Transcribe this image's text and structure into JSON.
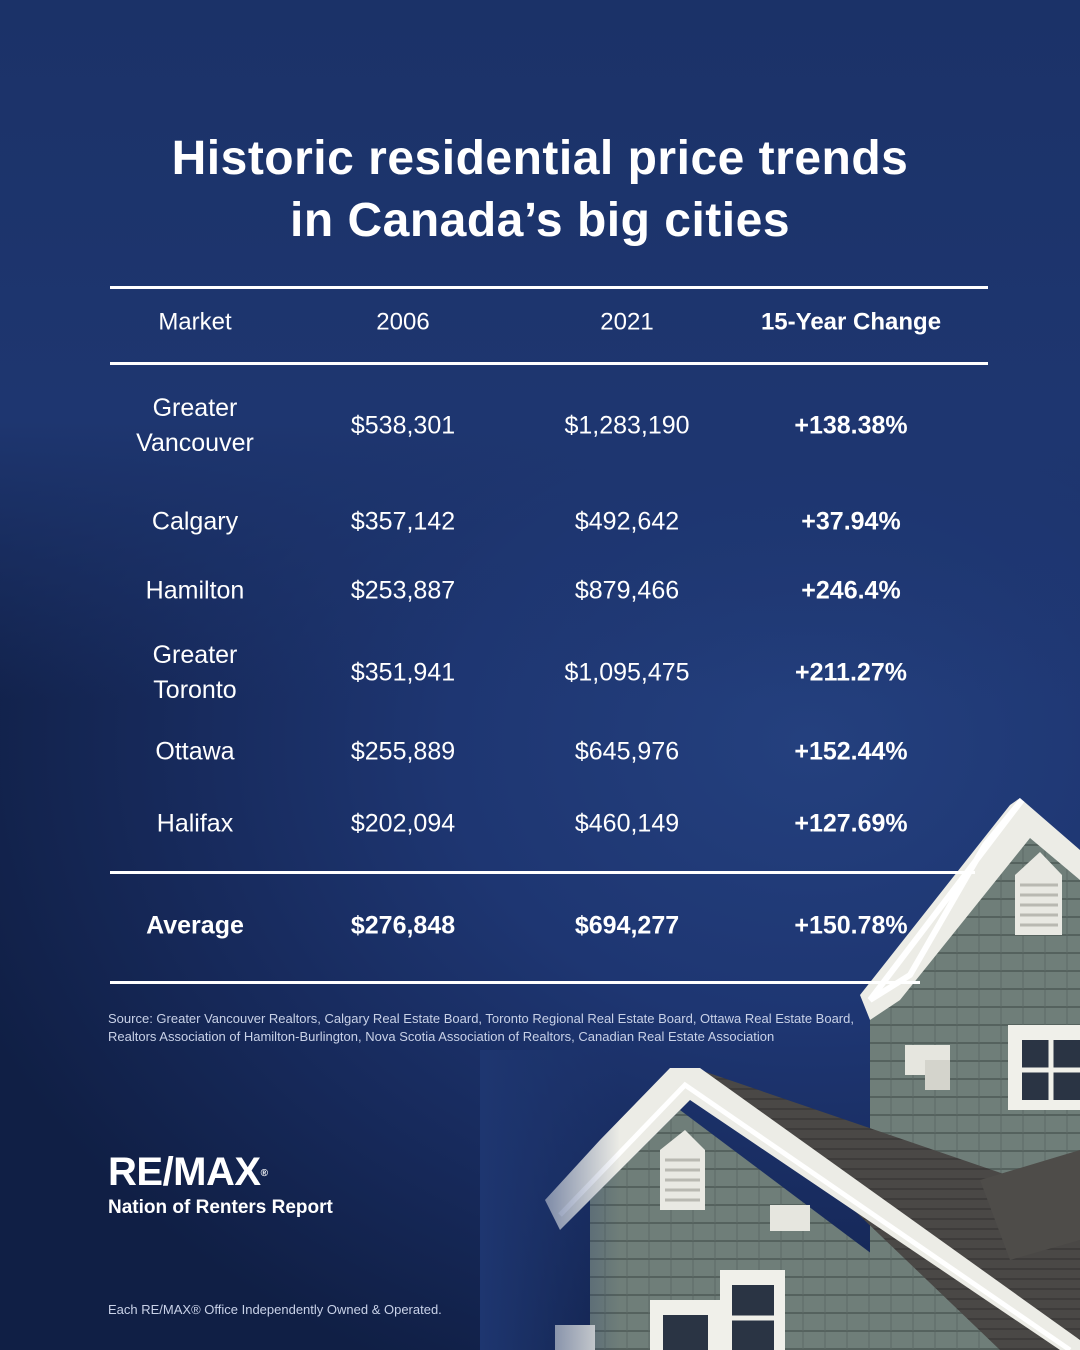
{
  "title_line1": "Historic residential price trends",
  "title_line2": "in Canada’s big cities",
  "chart_data": {
    "type": "table",
    "title": "Historic residential price trends in Canada’s big cities",
    "columns": [
      "Market",
      "2006",
      "2021",
      "15-Year Change"
    ],
    "rows": [
      {
        "market_line1": "Greater",
        "market_line2": "Vancouver",
        "y2006": "$538,301",
        "y2021": "$1,283,190",
        "change": "+138.38%"
      },
      {
        "market_line1": "Calgary",
        "market_line2": "",
        "y2006": "$357,142",
        "y2021": "$492,642",
        "change": "+37.94%"
      },
      {
        "market_line1": "Hamilton",
        "market_line2": "",
        "y2006": "$253,887",
        "y2021": "$879,466",
        "change": "+246.4%"
      },
      {
        "market_line1": "Greater",
        "market_line2": "Toronto",
        "y2006": "$351,941",
        "y2021": "$1,095,475",
        "change": "+211.27%"
      },
      {
        "market_line1": "Ottawa",
        "market_line2": "",
        "y2006": "$255,889",
        "y2021": "$645,976",
        "change": "+152.44%"
      },
      {
        "market_line1": "Halifax",
        "market_line2": "",
        "y2006": "$202,094",
        "y2021": "$460,149",
        "change": "+127.69%"
      }
    ],
    "average": {
      "label": "Average",
      "y2006": "$276,848",
      "y2021": "$694,277",
      "change": "+150.78%"
    }
  },
  "source_text": "Source: Greater Vancouver Realtors, Calgary Real Estate Board, Toronto Regional Real Estate Board, Ottawa Real Estate  Board, Realtors Association of Hamilton-Burlington, Nova Scotia Association of Realtors, Canadian Real Estate Association",
  "brand": {
    "logo_text": "RE/MAX",
    "logo_mark": "®",
    "report_name": "Nation of Renters Report"
  },
  "disclaimer": "Each RE/MAX® Office Independently Owned & Operated.",
  "colors": {
    "background": "#1e3670",
    "text": "#ffffff",
    "siding": "#6e7d78",
    "trim": "#efefe9",
    "roof": "#4b4a48"
  },
  "icons": [
    "house-illustration"
  ]
}
